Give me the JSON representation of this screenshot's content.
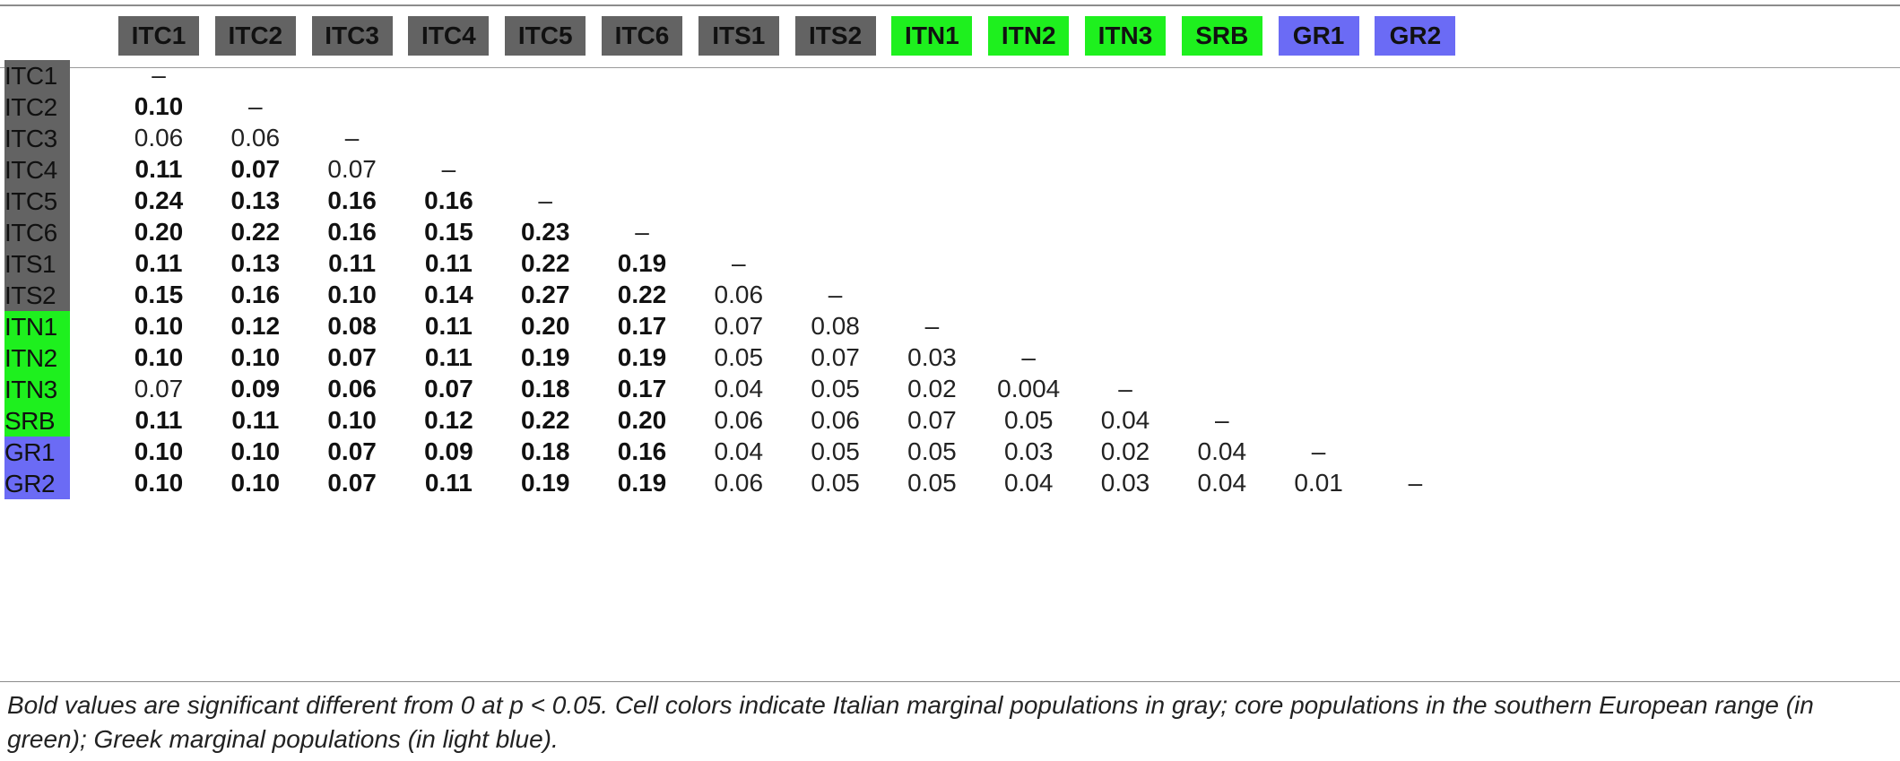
{
  "table": {
    "columns": [
      {
        "label": "ITC1",
        "group": "gray"
      },
      {
        "label": "ITC2",
        "group": "gray"
      },
      {
        "label": "ITC3",
        "group": "gray"
      },
      {
        "label": "ITC4",
        "group": "gray"
      },
      {
        "label": "ITC5",
        "group": "gray"
      },
      {
        "label": "ITC6",
        "group": "gray"
      },
      {
        "label": "ITS1",
        "group": "gray"
      },
      {
        "label": "ITS2",
        "group": "gray"
      },
      {
        "label": "ITN1",
        "group": "green"
      },
      {
        "label": "ITN2",
        "group": "green"
      },
      {
        "label": "ITN3",
        "group": "green"
      },
      {
        "label": "SRB",
        "group": "green"
      },
      {
        "label": "GR1",
        "group": "blue"
      },
      {
        "label": "GR2",
        "group": "blue"
      }
    ],
    "rows": [
      {
        "label": "ITC1",
        "group": "gray",
        "cells": [
          {
            "v": "–",
            "b": false
          }
        ]
      },
      {
        "label": "ITC2",
        "group": "gray",
        "cells": [
          {
            "v": "0.10",
            "b": true
          },
          {
            "v": "–",
            "b": false
          }
        ]
      },
      {
        "label": "ITC3",
        "group": "gray",
        "cells": [
          {
            "v": "0.06",
            "b": false
          },
          {
            "v": "0.06",
            "b": false
          },
          {
            "v": "–",
            "b": false
          }
        ]
      },
      {
        "label": "ITC4",
        "group": "gray",
        "cells": [
          {
            "v": "0.11",
            "b": true
          },
          {
            "v": "0.07",
            "b": true
          },
          {
            "v": "0.07",
            "b": false
          },
          {
            "v": "–",
            "b": false
          }
        ]
      },
      {
        "label": "ITC5",
        "group": "gray",
        "cells": [
          {
            "v": "0.24",
            "b": true
          },
          {
            "v": "0.13",
            "b": true
          },
          {
            "v": "0.16",
            "b": true
          },
          {
            "v": "0.16",
            "b": true
          },
          {
            "v": "–",
            "b": false
          }
        ]
      },
      {
        "label": "ITC6",
        "group": "gray",
        "cells": [
          {
            "v": "0.20",
            "b": true
          },
          {
            "v": "0.22",
            "b": true
          },
          {
            "v": "0.16",
            "b": true
          },
          {
            "v": "0.15",
            "b": true
          },
          {
            "v": "0.23",
            "b": true
          },
          {
            "v": "–",
            "b": false
          }
        ]
      },
      {
        "label": "ITS1",
        "group": "gray",
        "cells": [
          {
            "v": "0.11",
            "b": true
          },
          {
            "v": "0.13",
            "b": true
          },
          {
            "v": "0.11",
            "b": true
          },
          {
            "v": "0.11",
            "b": true
          },
          {
            "v": "0.22",
            "b": true
          },
          {
            "v": "0.19",
            "b": true
          },
          {
            "v": "–",
            "b": false
          }
        ]
      },
      {
        "label": "ITS2",
        "group": "gray",
        "cells": [
          {
            "v": "0.15",
            "b": true
          },
          {
            "v": "0.16",
            "b": true
          },
          {
            "v": "0.10",
            "b": true
          },
          {
            "v": "0.14",
            "b": true
          },
          {
            "v": "0.27",
            "b": true
          },
          {
            "v": "0.22",
            "b": true
          },
          {
            "v": "0.06",
            "b": false
          },
          {
            "v": "–",
            "b": false
          }
        ]
      },
      {
        "label": "ITN1",
        "group": "green",
        "cells": [
          {
            "v": "0.10",
            "b": true
          },
          {
            "v": "0.12",
            "b": true
          },
          {
            "v": "0.08",
            "b": true
          },
          {
            "v": "0.11",
            "b": true
          },
          {
            "v": "0.20",
            "b": true
          },
          {
            "v": "0.17",
            "b": true
          },
          {
            "v": "0.07",
            "b": false
          },
          {
            "v": "0.08",
            "b": false
          },
          {
            "v": "–",
            "b": false
          }
        ]
      },
      {
        "label": "ITN2",
        "group": "green",
        "cells": [
          {
            "v": "0.10",
            "b": true
          },
          {
            "v": "0.10",
            "b": true
          },
          {
            "v": "0.07",
            "b": true
          },
          {
            "v": "0.11",
            "b": true
          },
          {
            "v": "0.19",
            "b": true
          },
          {
            "v": "0.19",
            "b": true
          },
          {
            "v": "0.05",
            "b": false
          },
          {
            "v": "0.07",
            "b": false
          },
          {
            "v": "0.03",
            "b": false
          },
          {
            "v": "–",
            "b": false
          }
        ]
      },
      {
        "label": "ITN3",
        "group": "green",
        "cells": [
          {
            "v": "0.07",
            "b": false
          },
          {
            "v": "0.09",
            "b": true
          },
          {
            "v": "0.06",
            "b": true
          },
          {
            "v": "0.07",
            "b": true
          },
          {
            "v": "0.18",
            "b": true
          },
          {
            "v": "0.17",
            "b": true
          },
          {
            "v": "0.04",
            "b": false
          },
          {
            "v": "0.05",
            "b": false
          },
          {
            "v": "0.02",
            "b": false
          },
          {
            "v": "0.004",
            "b": false
          },
          {
            "v": "–",
            "b": false
          }
        ]
      },
      {
        "label": "SRB",
        "group": "green",
        "cells": [
          {
            "v": "0.11",
            "b": true
          },
          {
            "v": "0.11",
            "b": true
          },
          {
            "v": "0.10",
            "b": true
          },
          {
            "v": "0.12",
            "b": true
          },
          {
            "v": "0.22",
            "b": true
          },
          {
            "v": "0.20",
            "b": true
          },
          {
            "v": "0.06",
            "b": false
          },
          {
            "v": "0.06",
            "b": false
          },
          {
            "v": "0.07",
            "b": false
          },
          {
            "v": "0.05",
            "b": false
          },
          {
            "v": "0.04",
            "b": false
          },
          {
            "v": "–",
            "b": false
          }
        ]
      },
      {
        "label": "GR1",
        "group": "blue",
        "cells": [
          {
            "v": "0.10",
            "b": true
          },
          {
            "v": "0.10",
            "b": true
          },
          {
            "v": "0.07",
            "b": true
          },
          {
            "v": "0.09",
            "b": true
          },
          {
            "v": "0.18",
            "b": true
          },
          {
            "v": "0.16",
            "b": true
          },
          {
            "v": "0.04",
            "b": false
          },
          {
            "v": "0.05",
            "b": false
          },
          {
            "v": "0.05",
            "b": false
          },
          {
            "v": "0.03",
            "b": false
          },
          {
            "v": "0.02",
            "b": false
          },
          {
            "v": "0.04",
            "b": false
          },
          {
            "v": "–",
            "b": false
          }
        ]
      },
      {
        "label": "GR2",
        "group": "blue",
        "cells": [
          {
            "v": "0.10",
            "b": true
          },
          {
            "v": "0.10",
            "b": true
          },
          {
            "v": "0.07",
            "b": true
          },
          {
            "v": "0.11",
            "b": true
          },
          {
            "v": "0.19",
            "b": true
          },
          {
            "v": "0.19",
            "b": true
          },
          {
            "v": "0.06",
            "b": false
          },
          {
            "v": "0.05",
            "b": false
          },
          {
            "v": "0.05",
            "b": false
          },
          {
            "v": "0.04",
            "b": false
          },
          {
            "v": "0.03",
            "b": false
          },
          {
            "v": "0.04",
            "b": false
          },
          {
            "v": "0.01",
            "b": false
          },
          {
            "v": "–",
            "b": false
          }
        ]
      }
    ],
    "group_colors": {
      "gray": "#636363",
      "green": "#1ef01e",
      "blue": "#6b6bf5"
    }
  },
  "footnote": "Bold values are significant different from 0 at p < 0.05. Cell colors indicate Italian marginal populations in gray; core populations in the southern European range (in green); Greek marginal populations (in light blue)."
}
